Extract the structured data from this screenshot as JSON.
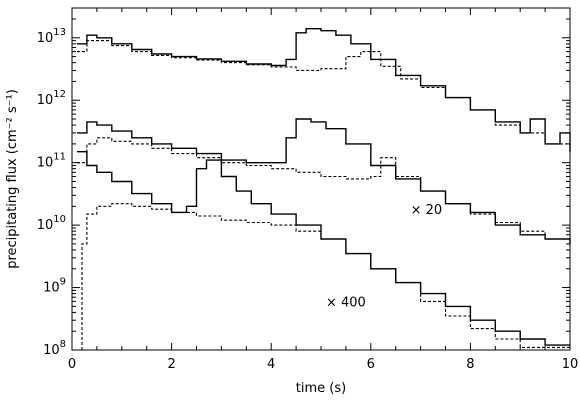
{
  "chart_data": {
    "type": "line",
    "xlabel": "time (s)",
    "ylabel": "precipitating flux (cm⁻² s⁻¹)",
    "xlim": [
      0,
      10
    ],
    "ylim": [
      100000000.0,
      30000000000000.0
    ],
    "yscale": "log",
    "grid": false,
    "x_ticks": [
      0,
      2,
      4,
      6,
      8,
      10
    ],
    "x_tick_labels": [
      "0",
      "2",
      "4",
      "6",
      "8",
      "10"
    ],
    "y_ticks": [
      100000000.0,
      1000000000.0,
      10000000000.0,
      100000000000.0,
      1000000000000.0,
      10000000000000.0
    ],
    "y_tick_labels": [
      {
        "base": "10",
        "exp": "8"
      },
      {
        "base": "10",
        "exp": "9"
      },
      {
        "base": "10",
        "exp": "10"
      },
      {
        "base": "10",
        "exp": "11"
      },
      {
        "base": "10",
        "exp": "12"
      },
      {
        "base": "10",
        "exp": "13"
      }
    ],
    "annotations": [
      {
        "text": "× 20",
        "x": 6.8,
        "y": 15000000000.0
      },
      {
        "text": "× 400",
        "x": 5.1,
        "y": 500000000.0
      }
    ],
    "series": [
      {
        "style": "solid",
        "x": [
          0.1,
          0.3,
          0.5,
          0.8,
          1.2,
          1.6,
          2.0,
          2.5,
          3.0,
          3.5,
          4.0,
          4.3,
          4.5,
          4.7,
          5.0,
          5.3,
          5.6,
          6.0,
          6.5,
          7.0,
          7.5,
          8.0,
          8.5,
          9.0,
          9.2,
          9.5,
          9.8,
          10.0
        ],
        "y": [
          8000000000000.0,
          11000000000000.0,
          10000000000000.0,
          8000000000000.0,
          6500000000000.0,
          5500000000000.0,
          5000000000000.0,
          4600000000000.0,
          4200000000000.0,
          3800000000000.0,
          3600000000000.0,
          4500000000000.0,
          12000000000000.0,
          14000000000000.0,
          13000000000000.0,
          11000000000000.0,
          8000000000000.0,
          4500000000000.0,
          2500000000000.0,
          1700000000000.0,
          1100000000000.0,
          700000000000.0,
          450000000000.0,
          300000000000.0,
          500000000000.0,
          200000000000.0,
          300000000000.0,
          150000000000.0
        ]
      },
      {
        "style": "dashed",
        "x": [
          0.1,
          0.3,
          0.5,
          0.8,
          1.2,
          1.6,
          2.0,
          2.5,
          3.0,
          3.5,
          4.0,
          4.5,
          5.0,
          5.5,
          5.8,
          6.2,
          6.6,
          7.0,
          7.5,
          8.0,
          8.5,
          9.0,
          9.5,
          10.0
        ],
        "y": [
          6000000000000.0,
          9000000000000.0,
          9000000000000.0,
          7500000000000.0,
          6000000000000.0,
          5200000000000.0,
          4800000000000.0,
          4400000000000.0,
          4000000000000.0,
          3700000000000.0,
          3400000000000.0,
          3000000000000.0,
          3200000000000.0,
          5000000000000.0,
          6000000000000.0,
          3500000000000.0,
          2200000000000.0,
          1600000000000.0,
          1100000000000.0,
          700000000000.0,
          400000000000.0,
          300000000000.0,
          200000000000.0,
          150000000000.0
        ]
      },
      {
        "style": "solid",
        "x": [
          0.1,
          0.3,
          0.5,
          0.8,
          1.2,
          1.6,
          2.0,
          2.5,
          3.0,
          3.5,
          4.0,
          4.3,
          4.5,
          4.8,
          5.1,
          5.5,
          6.0,
          6.5,
          7.0,
          7.5,
          8.0,
          8.5,
          9.0,
          9.5,
          10.0
        ],
        "y": [
          300000000000.0,
          450000000000.0,
          400000000000.0,
          320000000000.0,
          250000000000.0,
          200000000000.0,
          170000000000.0,
          140000000000.0,
          110000000000.0,
          100000000000.0,
          100000000000.0,
          250000000000.0,
          500000000000.0,
          450000000000.0,
          350000000000.0,
          200000000000.0,
          90000000000.0,
          55000000000.0,
          35000000000.0,
          22000000000.0,
          16000000000.0,
          10000000000.0,
          7000000000.0,
          6000000000.0,
          5000000000.0
        ]
      },
      {
        "style": "dashed",
        "x": [
          0.1,
          0.3,
          0.5,
          0.8,
          1.2,
          1.6,
          2.0,
          2.5,
          3.0,
          3.5,
          4.0,
          4.5,
          5.0,
          5.5,
          6.0,
          6.2,
          6.5,
          7.0,
          7.5,
          8.0,
          8.5,
          9.0,
          9.5,
          10.0
        ],
        "y": [
          100000000000.0,
          200000000000.0,
          250000000000.0,
          220000000000.0,
          200000000000.0,
          170000000000.0,
          140000000000.0,
          120000000000.0,
          100000000000.0,
          90000000000.0,
          80000000000.0,
          70000000000.0,
          60000000000.0,
          55000000000.0,
          60000000000.0,
          120000000000.0,
          60000000000.0,
          35000000000.0,
          22000000000.0,
          15000000000.0,
          11000000000.0,
          8000000000.0,
          6000000000.0,
          5000000000.0
        ]
      },
      {
        "style": "solid",
        "x": [
          0.1,
          0.3,
          0.5,
          0.8,
          1.2,
          1.6,
          2.0,
          2.3,
          2.5,
          2.7,
          3.0,
          3.3,
          3.6,
          4.0,
          4.5,
          5.0,
          5.5,
          6.0,
          6.5,
          7.0,
          7.5,
          8.0,
          8.5,
          9.0,
          9.5,
          10.0
        ],
        "y": [
          150000000000.0,
          90000000000.0,
          70000000000.0,
          50000000000.0,
          32000000000.0,
          22000000000.0,
          16000000000.0,
          20000000000.0,
          80000000000.0,
          110000000000.0,
          60000000000.0,
          35000000000.0,
          22000000000.0,
          15000000000.0,
          10000000000.0,
          6000000000.0,
          3500000000.0,
          2000000000.0,
          1200000000.0,
          800000000.0,
          500000000.0,
          300000000.0,
          200000000.0,
          150000000.0,
          120000000.0,
          120000000.0
        ]
      },
      {
        "style": "dashed",
        "x": [
          0.1,
          0.2,
          0.3,
          0.5,
          0.8,
          1.2,
          1.6,
          2.0,
          2.5,
          3.0,
          3.5,
          4.0,
          4.5,
          5.0,
          5.5,
          6.0,
          6.5,
          7.0,
          7.5,
          8.0,
          8.5,
          9.0,
          9.5,
          10.0
        ],
        "y": [
          100000000.0,
          5000000000.0,
          15000000000.0,
          20000000000.0,
          22000000000.0,
          20000000000.0,
          18000000000.0,
          16000000000.0,
          14000000000.0,
          12000000000.0,
          11000000000.0,
          10000000000.0,
          8000000000.0,
          6000000000.0,
          3500000000.0,
          2000000000.0,
          1200000000.0,
          600000000.0,
          350000000.0,
          220000000.0,
          150000000.0,
          110000000.0,
          110000000.0,
          100000000.0
        ]
      }
    ]
  }
}
